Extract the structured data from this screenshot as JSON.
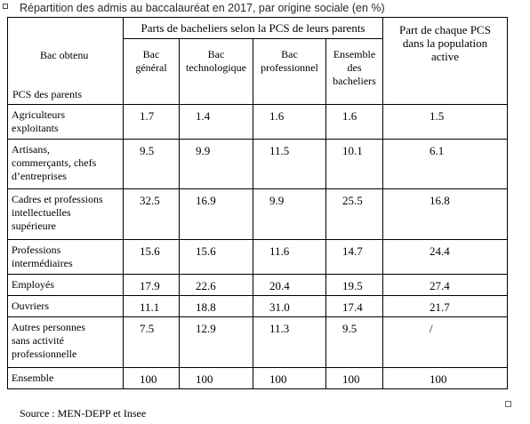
{
  "title": "Répartition des admis au baccalauréat en 2017, par origine sociale (en %)",
  "header": {
    "corner_top": "Bac obtenu",
    "corner_bottom": "PCS des parents",
    "group_label": "Parts de bacheliers selon la PCS de leurs parents",
    "columns": [
      [
        "Bac",
        "général"
      ],
      [
        "Bac",
        "technologique"
      ],
      [
        "Bac",
        "professionnel"
      ],
      [
        "Ensemble",
        "des",
        "bacheliers"
      ]
    ],
    "part_label": [
      "Part de chaque PCS",
      "dans la population",
      "active"
    ]
  },
  "rows": [
    {
      "label": [
        "Agriculteurs",
        "exploitants"
      ],
      "values": [
        "1.7",
        "1.4",
        "1.6",
        "1.6",
        "1.5"
      ]
    },
    {
      "label": [
        "Artisans,",
        "commerçants, chefs",
        "d’entreprises"
      ],
      "values": [
        "9.5",
        "9.9",
        "11.5",
        "10.1",
        "6.1"
      ]
    },
    {
      "label": [
        "Cadres et professions",
        "intellectuelles",
        "supérieure"
      ],
      "values": [
        "32.5",
        "16.9",
        "9.9",
        "25.5",
        "16.8"
      ]
    },
    {
      "label": [
        "Professions",
        "intermédiaires"
      ],
      "values": [
        "15.6",
        "15.6",
        "11.6",
        "14.7",
        "24.4"
      ]
    },
    {
      "label": [
        "Employés"
      ],
      "values": [
        "17.9",
        "22.6",
        "20.4",
        "19.5",
        "27.4"
      ]
    },
    {
      "label": [
        "Ouvriers"
      ],
      "values": [
        "11.1",
        "18.8",
        "31.0",
        "17.4",
        "21.7"
      ]
    },
    {
      "label": [
        "Autres personnes",
        "sans activité",
        "professionnelle"
      ],
      "values": [
        "7.5",
        "12.9",
        "11.3",
        "9.5",
        "/"
      ]
    },
    {
      "label": [
        "Ensemble"
      ],
      "values": [
        "100",
        "100",
        "100",
        "100",
        "100"
      ]
    }
  ],
  "source": "Source : MEN-DEPP  et Insee"
}
